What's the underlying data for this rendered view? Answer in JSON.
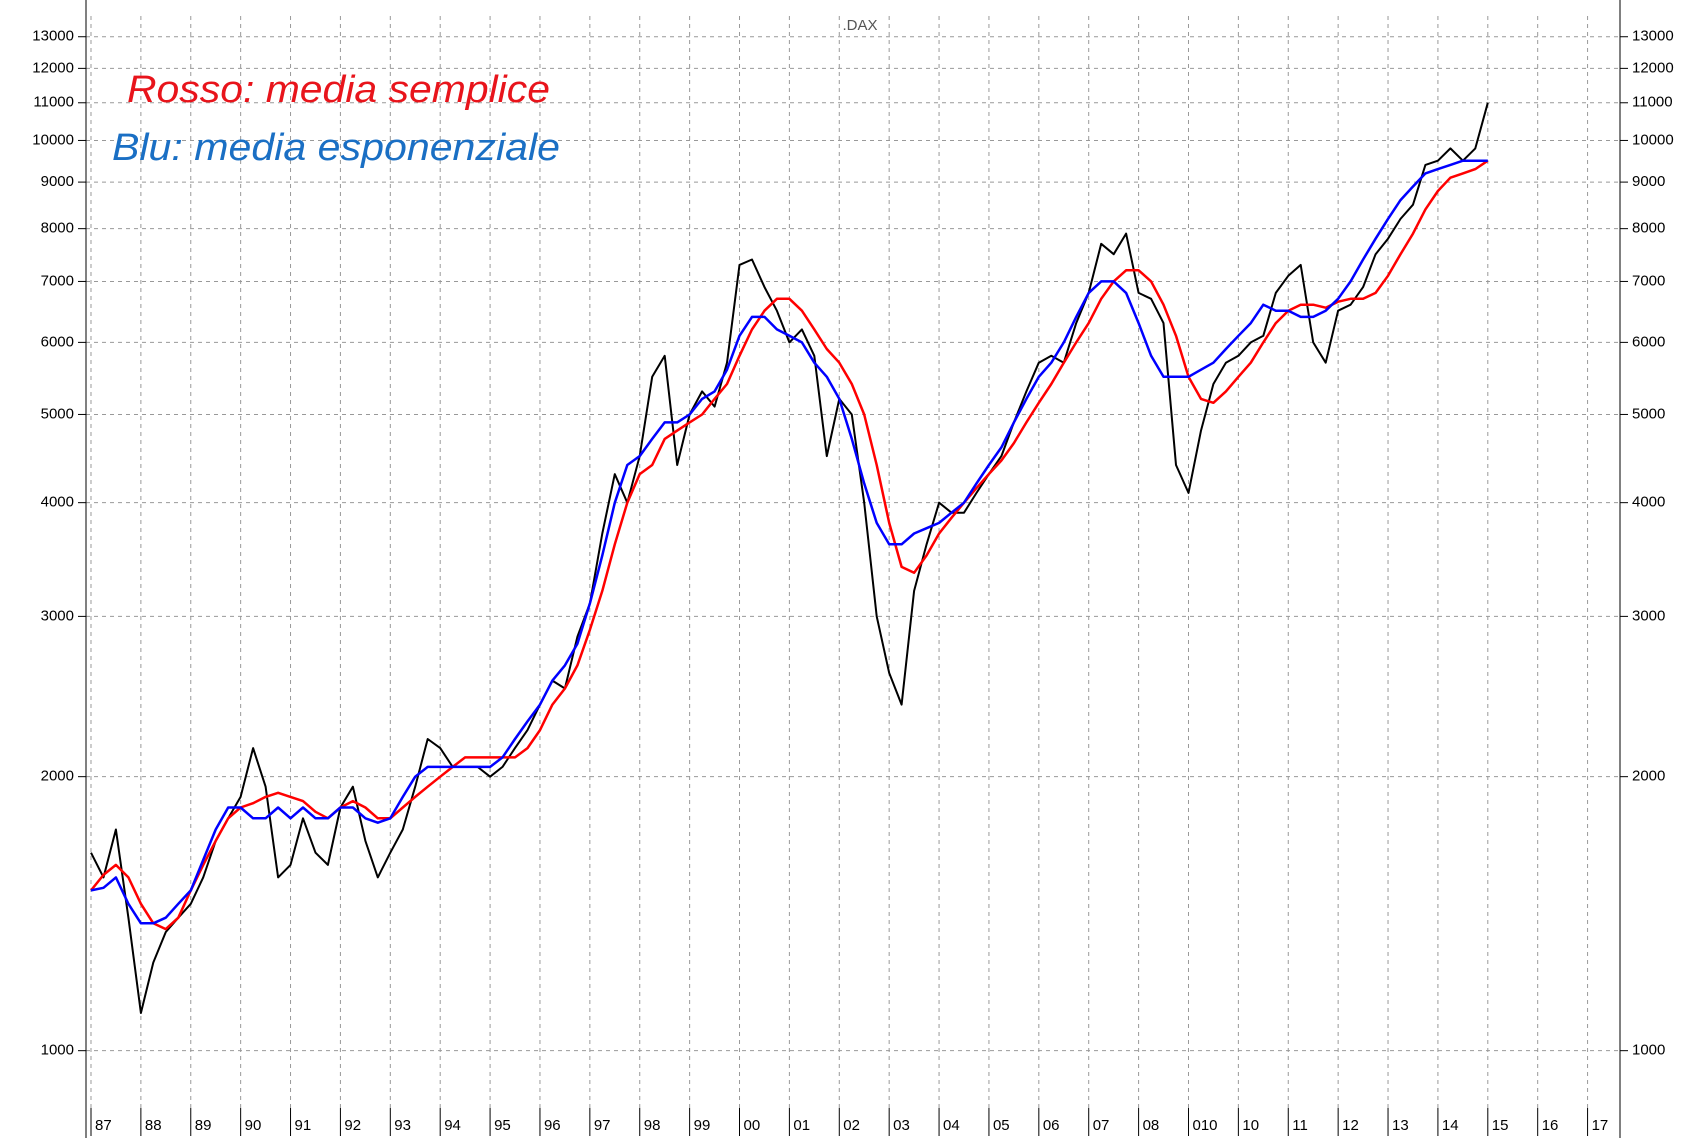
{
  "chart_data": {
    "type": "line",
    "title": ".DAX",
    "annotations": [
      {
        "text": "Rosso: media semplice",
        "color": "#e8141b"
      },
      {
        "text": "Blu: media esponenziale",
        "color": "#1a6fc4"
      }
    ],
    "log_scale": true,
    "grid": true,
    "xlim": [
      1986.9,
      2017.65
    ],
    "xticks": [
      {
        "value": 1987,
        "label": "87"
      },
      {
        "value": 1988,
        "label": "88"
      },
      {
        "value": 1989,
        "label": "89"
      },
      {
        "value": 1990,
        "label": "90"
      },
      {
        "value": 1991,
        "label": "91"
      },
      {
        "value": 1992,
        "label": "92"
      },
      {
        "value": 1993,
        "label": "93"
      },
      {
        "value": 1994,
        "label": "94"
      },
      {
        "value": 1995,
        "label": "95"
      },
      {
        "value": 1996,
        "label": "96"
      },
      {
        "value": 1997,
        "label": "97"
      },
      {
        "value": 1998,
        "label": "98"
      },
      {
        "value": 1999,
        "label": "99"
      },
      {
        "value": 2000,
        "label": "00"
      },
      {
        "value": 2001,
        "label": "01"
      },
      {
        "value": 2002,
        "label": "02"
      },
      {
        "value": 2003,
        "label": "03"
      },
      {
        "value": 2004,
        "label": "04"
      },
      {
        "value": 2005,
        "label": "05"
      },
      {
        "value": 2006,
        "label": "06"
      },
      {
        "value": 2007,
        "label": "07"
      },
      {
        "value": 2008,
        "label": "08"
      },
      {
        "value": 2009,
        "label": "010"
      },
      {
        "value": 2010,
        "label": "10"
      },
      {
        "value": 2011,
        "label": "11"
      },
      {
        "value": 2012,
        "label": "12"
      },
      {
        "value": 2013,
        "label": "13"
      },
      {
        "value": 2014,
        "label": "14"
      },
      {
        "value": 2015,
        "label": "15"
      },
      {
        "value": 2016,
        "label": "16"
      },
      {
        "value": 2017,
        "label": "17"
      }
    ],
    "ylim": [
      865,
      13700
    ],
    "yticks": [
      1000,
      2000,
      3000,
      4000,
      5000,
      6000,
      7000,
      8000,
      9000,
      10000,
      11000,
      12000,
      13000
    ],
    "x": [
      1987,
      1987.25,
      1987.5,
      1987.75,
      1988,
      1988.25,
      1988.5,
      1988.75,
      1989,
      1989.25,
      1989.5,
      1989.75,
      1990,
      1990.25,
      1990.5,
      1990.75,
      1991,
      1991.25,
      1991.5,
      1991.75,
      1992,
      1992.25,
      1992.5,
      1992.75,
      1993,
      1993.25,
      1993.5,
      1993.75,
      1994,
      1994.25,
      1994.5,
      1994.75,
      1995,
      1995.25,
      1995.5,
      1995.75,
      1996,
      1996.25,
      1996.5,
      1996.75,
      1997,
      1997.25,
      1997.5,
      1997.75,
      1998,
      1998.25,
      1998.5,
      1998.75,
      1999,
      1999.25,
      1999.5,
      1999.75,
      2000,
      2000.25,
      2000.5,
      2000.75,
      2001,
      2001.25,
      2001.5,
      2001.75,
      2002,
      2002.25,
      2002.5,
      2002.75,
      2003,
      2003.25,
      2003.5,
      2003.75,
      2004,
      2004.25,
      2004.5,
      2004.75,
      2005,
      2005.25,
      2005.5,
      2005.75,
      2006,
      2006.25,
      2006.5,
      2006.75,
      2007,
      2007.25,
      2007.5,
      2007.75,
      2008,
      2008.25,
      2008.5,
      2008.75,
      2009,
      2009.25,
      2009.5,
      2009.75,
      2010,
      2010.25,
      2010.5,
      2010.75,
      2011,
      2011.25,
      2011.5,
      2011.75,
      2012,
      2012.25,
      2012.5,
      2012.75,
      2013,
      2013.25,
      2013.5,
      2013.75,
      2014,
      2014.25,
      2014.5,
      2014.75,
      2015
    ],
    "series": [
      {
        "color": "#000000",
        "values": [
          1650,
          1550,
          1750,
          1400,
          1100,
          1250,
          1350,
          1400,
          1450,
          1550,
          1700,
          1800,
          1900,
          2150,
          1950,
          1550,
          1600,
          1800,
          1650,
          1600,
          1850,
          1950,
          1700,
          1550,
          1650,
          1750,
          1950,
          2200,
          2150,
          2050,
          2050,
          2050,
          2000,
          2050,
          2150,
          2250,
          2400,
          2550,
          2500,
          2850,
          3100,
          3700,
          4300,
          4000,
          4500,
          5500,
          5800,
          4400,
          5000,
          5300,
          5100,
          5700,
          7300,
          7400,
          6900,
          6500,
          6000,
          6200,
          5800,
          4500,
          5200,
          5000,
          4000,
          3000,
          2600,
          2400,
          3200,
          3600,
          4000,
          3900,
          3900,
          4100,
          4300,
          4500,
          4900,
          5300,
          5700,
          5800,
          5700,
          6300,
          6800,
          7700,
          7500,
          7900,
          6800,
          6700,
          6300,
          4400,
          4100,
          4800,
          5400,
          5700,
          5800,
          6000,
          6100,
          6800,
          7100,
          7300,
          6000,
          5700,
          6500,
          6600,
          6900,
          7500,
          7800,
          8200,
          8500,
          9400,
          9500,
          9800,
          9500,
          9800,
          11000
        ]
      },
      {
        "color": "#ff0000",
        "values": [
          1500,
          1560,
          1600,
          1550,
          1450,
          1380,
          1360,
          1400,
          1500,
          1600,
          1700,
          1800,
          1850,
          1870,
          1900,
          1920,
          1900,
          1880,
          1830,
          1800,
          1850,
          1880,
          1850,
          1800,
          1800,
          1850,
          1900,
          1950,
          2000,
          2050,
          2100,
          2100,
          2100,
          2100,
          2100,
          2150,
          2250,
          2400,
          2500,
          2650,
          2900,
          3200,
          3600,
          4000,
          4300,
          4400,
          4700,
          4800,
          4900,
          5000,
          5200,
          5400,
          5800,
          6200,
          6500,
          6700,
          6700,
          6500,
          6200,
          5900,
          5700,
          5400,
          5000,
          4400,
          3800,
          3400,
          3350,
          3500,
          3700,
          3850,
          4000,
          4150,
          4300,
          4450,
          4650,
          4900,
          5150,
          5400,
          5700,
          6000,
          6300,
          6700,
          7000,
          7200,
          7200,
          7000,
          6600,
          6100,
          5500,
          5200,
          5150,
          5300,
          5500,
          5700,
          6000,
          6300,
          6500,
          6600,
          6600,
          6550,
          6650,
          6700,
          6700,
          6800,
          7100,
          7500,
          7900,
          8400,
          8800,
          9100,
          9200,
          9300,
          9500
        ]
      },
      {
        "color": "#0000ff",
        "values": [
          1500,
          1510,
          1550,
          1450,
          1380,
          1380,
          1400,
          1450,
          1500,
          1620,
          1750,
          1850,
          1850,
          1800,
          1800,
          1850,
          1800,
          1850,
          1800,
          1800,
          1850,
          1850,
          1800,
          1780,
          1800,
          1900,
          2000,
          2050,
          2050,
          2050,
          2050,
          2050,
          2050,
          2100,
          2200,
          2300,
          2400,
          2550,
          2650,
          2800,
          3100,
          3500,
          4000,
          4400,
          4500,
          4700,
          4900,
          4900,
          5000,
          5200,
          5300,
          5600,
          6100,
          6400,
          6400,
          6200,
          6100,
          6000,
          5700,
          5500,
          5200,
          4700,
          4200,
          3800,
          3600,
          3600,
          3700,
          3750,
          3800,
          3900,
          4000,
          4200,
          4400,
          4600,
          4900,
          5200,
          5500,
          5700,
          6000,
          6400,
          6800,
          7000,
          7000,
          6800,
          6300,
          5800,
          5500,
          5500,
          5500,
          5600,
          5700,
          5900,
          6100,
          6300,
          6600,
          6500,
          6500,
          6400,
          6400,
          6500,
          6700,
          7000,
          7400,
          7800,
          8200,
          8600,
          8900,
          9200,
          9300,
          9400,
          9500,
          9500,
          9500
        ]
      }
    ]
  }
}
